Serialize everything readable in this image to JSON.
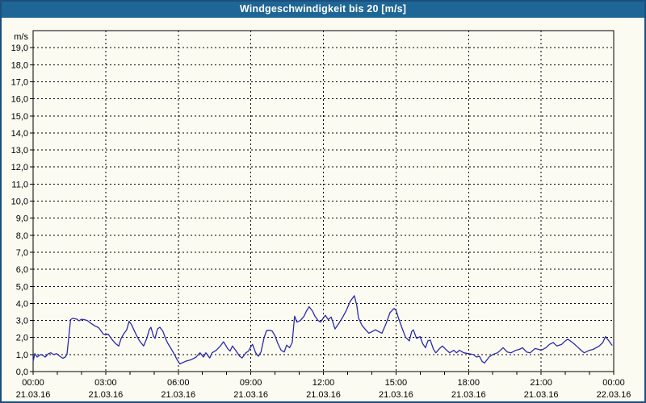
{
  "title": "Windgeschwindigkeit bis 20 [m/s]",
  "colors": {
    "titlebar": "#1E6695",
    "title_text": "#FFFFFF",
    "window_border": "#1D4E7D",
    "background": "#FBFBF2",
    "plot_background": "#FBFBF2",
    "grid": "#000000",
    "axis": "#000000",
    "line": "#2A2AAD"
  },
  "chart_data": {
    "type": "line",
    "title": "Windgeschwindigkeit bis 20 [m/s]",
    "y_axis": {
      "unit_label": "m/s",
      "min": 0,
      "max": 20,
      "tick_step": 1,
      "tick_labels": [
        "19,0",
        "18,0",
        "17,0",
        "16,0",
        "15,0",
        "14,0",
        "13,0",
        "12,0",
        "11,0",
        "10,0",
        "9,0",
        "8,0",
        "7,0",
        "6,0",
        "5,0",
        "4,0",
        "3,0",
        "2,0",
        "1,0",
        "0,0"
      ],
      "tick_values": [
        19,
        18,
        17,
        16,
        15,
        14,
        13,
        12,
        11,
        10,
        9,
        8,
        7,
        6,
        5,
        4,
        3,
        2,
        1,
        0
      ]
    },
    "x_axis": {
      "min_hours": 0,
      "max_hours": 24,
      "minor_tick_step_hours": 1,
      "major_ticks": [
        {
          "hour": 0,
          "time": "00:00",
          "date": "21.03.16"
        },
        {
          "hour": 3,
          "time": "03:00",
          "date": "21.03.16"
        },
        {
          "hour": 6,
          "time": "06:00",
          "date": "21.03.16"
        },
        {
          "hour": 9,
          "time": "09:00",
          "date": "21.03.16"
        },
        {
          "hour": 12,
          "time": "12:00",
          "date": "21.03.16"
        },
        {
          "hour": 15,
          "time": "15:00",
          "date": "21.03.16"
        },
        {
          "hour": 18,
          "time": "18:00",
          "date": "21.03.16"
        },
        {
          "hour": 21,
          "time": "21:00",
          "date": "21.03.16"
        },
        {
          "hour": 24,
          "time": "00:00",
          "date": "22.03.16"
        }
      ]
    },
    "grid": "dashed",
    "legend": "none",
    "series": [
      {
        "name": "Windgeschwindigkeit",
        "color": "#2A2AAD",
        "points": [
          [
            0,
            0.6
          ],
          [
            0.07,
            1.05
          ],
          [
            0.17,
            0.85
          ],
          [
            0.3,
            1.0
          ],
          [
            0.4,
            0.95
          ],
          [
            0.5,
            0.85
          ],
          [
            0.63,
            1.05
          ],
          [
            0.73,
            1.1
          ],
          [
            0.85,
            1.0
          ],
          [
            0.97,
            1.05
          ],
          [
            1.1,
            0.9
          ],
          [
            1.23,
            0.78
          ],
          [
            1.33,
            0.85
          ],
          [
            1.4,
            1.0
          ],
          [
            1.47,
            1.95
          ],
          [
            1.55,
            3.05
          ],
          [
            1.63,
            3.12
          ],
          [
            1.8,
            3.08
          ],
          [
            1.9,
            2.98
          ],
          [
            2.0,
            3.07
          ],
          [
            2.1,
            3.05
          ],
          [
            2.24,
            3.0
          ],
          [
            2.37,
            2.85
          ],
          [
            2.55,
            2.68
          ],
          [
            2.7,
            2.58
          ],
          [
            2.8,
            2.4
          ],
          [
            2.9,
            2.2
          ],
          [
            3.0,
            2.15
          ],
          [
            3.1,
            2.2
          ],
          [
            3.25,
            1.9
          ],
          [
            3.4,
            1.65
          ],
          [
            3.54,
            1.5
          ],
          [
            3.64,
            1.95
          ],
          [
            3.74,
            2.2
          ],
          [
            3.87,
            2.45
          ],
          [
            3.97,
            2.95
          ],
          [
            4.07,
            2.75
          ],
          [
            4.2,
            2.35
          ],
          [
            4.3,
            2.05
          ],
          [
            4.4,
            1.8
          ],
          [
            4.57,
            1.5
          ],
          [
            4.7,
            1.95
          ],
          [
            4.8,
            2.45
          ],
          [
            4.87,
            2.6
          ],
          [
            4.97,
            2.1
          ],
          [
            5.04,
            1.95
          ],
          [
            5.14,
            2.5
          ],
          [
            5.24,
            2.6
          ],
          [
            5.37,
            2.35
          ],
          [
            5.47,
            1.95
          ],
          [
            5.57,
            1.65
          ],
          [
            5.7,
            1.35
          ],
          [
            5.8,
            1.1
          ],
          [
            5.97,
            0.65
          ],
          [
            6.07,
            0.45
          ],
          [
            6.3,
            0.6
          ],
          [
            6.54,
            0.7
          ],
          [
            6.74,
            0.85
          ],
          [
            6.9,
            1.1
          ],
          [
            7.04,
            0.85
          ],
          [
            7.14,
            1.1
          ],
          [
            7.3,
            0.8
          ],
          [
            7.4,
            1.1
          ],
          [
            7.57,
            1.25
          ],
          [
            7.74,
            1.5
          ],
          [
            7.87,
            1.75
          ],
          [
            8.04,
            1.35
          ],
          [
            8.14,
            1.2
          ],
          [
            8.24,
            1.5
          ],
          [
            8.37,
            1.25
          ],
          [
            8.54,
            0.9
          ],
          [
            8.64,
            0.8
          ],
          [
            8.8,
            1.1
          ],
          [
            8.9,
            1.2
          ],
          [
            9.0,
            1.45
          ],
          [
            9.07,
            1.6
          ],
          [
            9.2,
            1.1
          ],
          [
            9.31,
            0.9
          ],
          [
            9.42,
            1.15
          ],
          [
            9.55,
            2.0
          ],
          [
            9.65,
            2.4
          ],
          [
            9.78,
            2.42
          ],
          [
            9.88,
            2.38
          ],
          [
            10.0,
            2.1
          ],
          [
            10.1,
            1.7
          ],
          [
            10.25,
            1.25
          ],
          [
            10.38,
            1.15
          ],
          [
            10.48,
            1.55
          ],
          [
            10.6,
            1.4
          ],
          [
            10.71,
            1.7
          ],
          [
            10.81,
            3.25
          ],
          [
            10.91,
            2.9
          ],
          [
            11.05,
            3.0
          ],
          [
            11.2,
            3.25
          ],
          [
            11.3,
            3.55
          ],
          [
            11.41,
            3.8
          ],
          [
            11.55,
            3.55
          ],
          [
            11.65,
            3.25
          ],
          [
            11.78,
            3.0
          ],
          [
            11.88,
            2.9
          ],
          [
            12.0,
            3.15
          ],
          [
            12.08,
            3.3
          ],
          [
            12.2,
            3.05
          ],
          [
            12.32,
            3.2
          ],
          [
            12.48,
            2.5
          ],
          [
            12.65,
            2.85
          ],
          [
            12.8,
            3.2
          ],
          [
            12.95,
            3.6
          ],
          [
            13.1,
            4.1
          ],
          [
            13.28,
            4.45
          ],
          [
            13.38,
            3.9
          ],
          [
            13.45,
            3.15
          ],
          [
            13.6,
            2.7
          ],
          [
            13.75,
            2.45
          ],
          [
            13.88,
            2.25
          ],
          [
            14.02,
            2.35
          ],
          [
            14.15,
            2.45
          ],
          [
            14.28,
            2.35
          ],
          [
            14.42,
            2.25
          ],
          [
            14.6,
            2.85
          ],
          [
            14.75,
            3.45
          ],
          [
            14.92,
            3.7
          ],
          [
            15.0,
            3.6
          ],
          [
            15.1,
            3.15
          ],
          [
            15.25,
            2.55
          ],
          [
            15.4,
            2.0
          ],
          [
            15.55,
            1.8
          ],
          [
            15.65,
            2.35
          ],
          [
            15.72,
            2.45
          ],
          [
            15.85,
            1.95
          ],
          [
            16.0,
            2.05
          ],
          [
            16.1,
            1.65
          ],
          [
            16.22,
            1.4
          ],
          [
            16.32,
            1.8
          ],
          [
            16.42,
            1.85
          ],
          [
            16.55,
            1.3
          ],
          [
            16.65,
            1.1
          ],
          [
            16.8,
            1.35
          ],
          [
            16.92,
            1.5
          ],
          [
            17.1,
            1.25
          ],
          [
            17.22,
            1.1
          ],
          [
            17.39,
            1.25
          ],
          [
            17.5,
            1.1
          ],
          [
            17.62,
            1.25
          ],
          [
            17.8,
            1.1
          ],
          [
            18.0,
            1.05
          ],
          [
            18.2,
            1.0
          ],
          [
            18.33,
            0.85
          ],
          [
            18.45,
            0.9
          ],
          [
            18.56,
            0.6
          ],
          [
            18.66,
            0.5
          ],
          [
            18.85,
            0.85
          ],
          [
            19.0,
            1.0
          ],
          [
            19.2,
            1.1
          ],
          [
            19.43,
            1.4
          ],
          [
            19.6,
            1.15
          ],
          [
            19.76,
            1.1
          ],
          [
            19.95,
            1.25
          ],
          [
            20.1,
            1.3
          ],
          [
            20.23,
            1.4
          ],
          [
            20.4,
            1.15
          ],
          [
            20.55,
            1.1
          ],
          [
            20.75,
            1.35
          ],
          [
            20.9,
            1.3
          ],
          [
            21.0,
            1.25
          ],
          [
            21.2,
            1.4
          ],
          [
            21.35,
            1.6
          ],
          [
            21.5,
            1.7
          ],
          [
            21.65,
            1.5
          ],
          [
            21.85,
            1.6
          ],
          [
            22.0,
            1.8
          ],
          [
            22.1,
            1.9
          ],
          [
            22.3,
            1.7
          ],
          [
            22.5,
            1.45
          ],
          [
            22.65,
            1.25
          ],
          [
            22.78,
            1.1
          ],
          [
            23.0,
            1.25
          ],
          [
            23.15,
            1.3
          ],
          [
            23.4,
            1.5
          ],
          [
            23.55,
            1.7
          ],
          [
            23.66,
            2.05
          ],
          [
            23.8,
            1.8
          ],
          [
            23.93,
            1.55
          ]
        ]
      }
    ]
  }
}
